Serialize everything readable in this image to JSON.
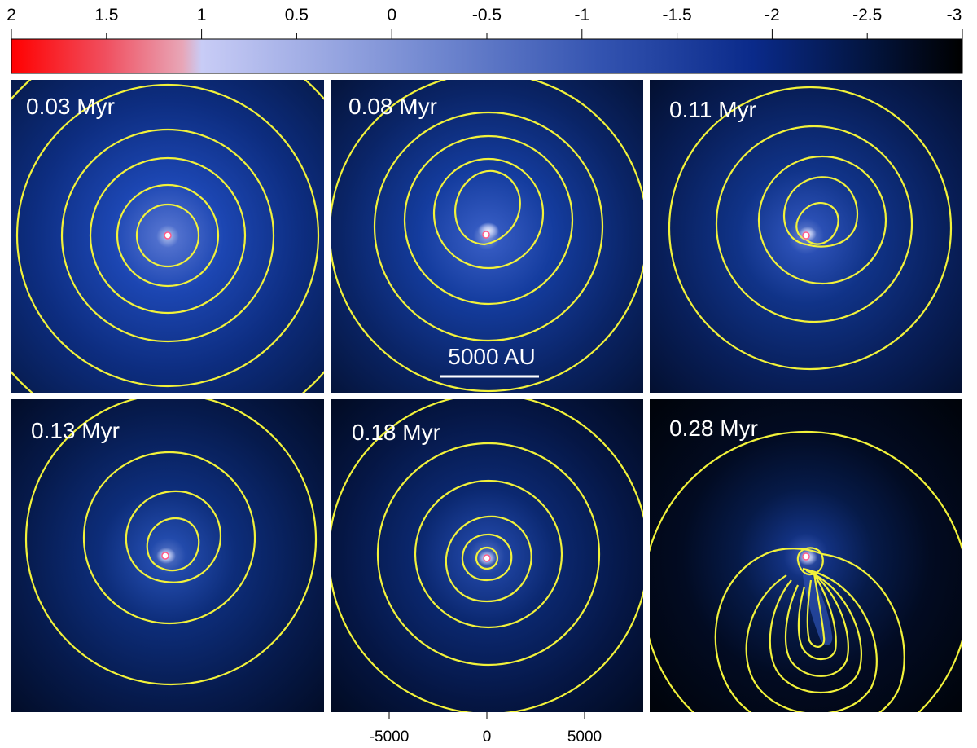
{
  "colorbar": {
    "tick_labels": [
      "2",
      "1.5",
      "1",
      "0.5",
      "0",
      "-0.5",
      "-1",
      "-1.5",
      "-2",
      "-2.5",
      "-3"
    ],
    "colors": [
      "#ff0000",
      "#e8a6b7",
      "#c8ccf6",
      "#3353b0",
      "#001a66",
      "#000000"
    ]
  },
  "panels": [
    {
      "time_label": "0.03 Myr"
    },
    {
      "time_label": "0.08 Myr",
      "scale_bar_label": "5000 AU"
    },
    {
      "time_label": "0.11 Myr"
    },
    {
      "time_label": "0.13 Myr"
    },
    {
      "time_label": "0.18 Myr"
    },
    {
      "time_label": "0.28 Myr"
    }
  ],
  "x_axis": {
    "tick_labels": [
      "-5000",
      "0",
      "5000"
    ]
  },
  "contour_color": "#f2f23a"
}
